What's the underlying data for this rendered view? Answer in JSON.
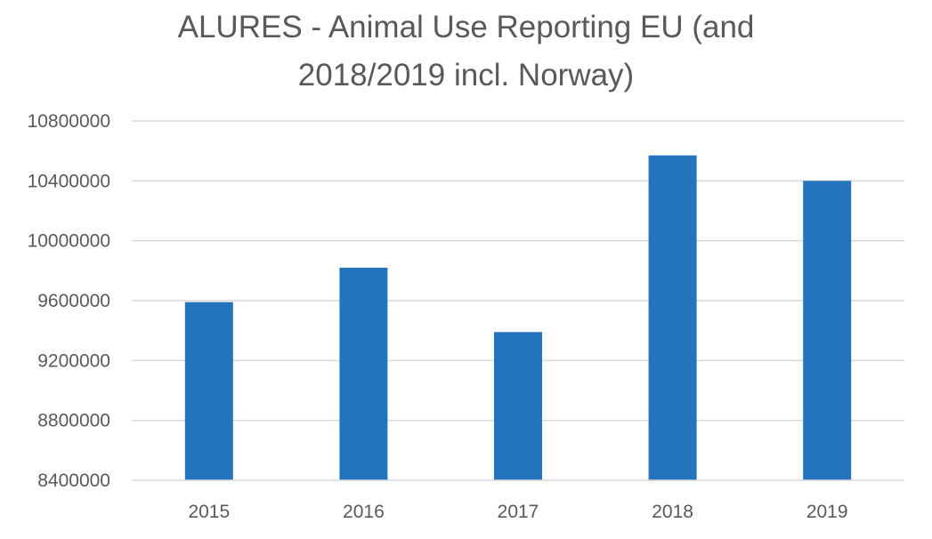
{
  "chart_data": {
    "type": "bar",
    "title_lines": [
      "ALURES - Animal Use Reporting EU (and",
      "2018/2019 incl. Norway)"
    ],
    "categories": [
      "2015",
      "2016",
      "2017",
      "2018",
      "2019"
    ],
    "values": [
      9590000,
      9820000,
      9390000,
      10570000,
      10400000
    ],
    "ylim": [
      8400000,
      10800000
    ],
    "yticks": [
      "8400000",
      "8800000",
      "9200000",
      "9600000",
      "10000000",
      "10400000",
      "10800000"
    ],
    "ytick_values": [
      8400000,
      8800000,
      9200000,
      9600000,
      10000000,
      10400000,
      10800000
    ],
    "xlabel": "",
    "ylabel": "",
    "grid": true,
    "legend": "none",
    "bar_color": "#2374BD"
  }
}
